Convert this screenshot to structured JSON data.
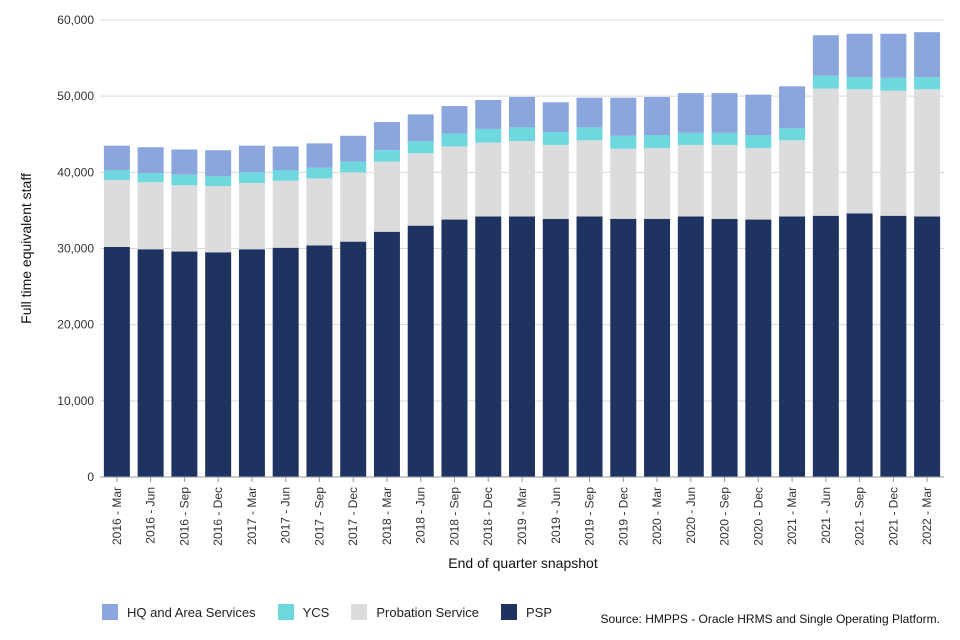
{
  "chart_data": {
    "type": "bar",
    "stacked": true,
    "xlabel": "End of quarter snapshot",
    "ylabel": "Full time equivalent staff",
    "ylim": [
      0,
      60000
    ],
    "yticks": [
      "0",
      "10,000",
      "20,000",
      "30,000",
      "40,000",
      "50,000",
      "60,000"
    ],
    "grid": true,
    "legend_position": "bottom-left",
    "categories": [
      "2016 - Mar",
      "2016 - Jun",
      "2016 - Sep",
      "2016 - Dec",
      "2017 - Mar",
      "2017 - Jun",
      "2017 - Sep",
      "2017 - Dec",
      "2018 - Mar",
      "2018 - Jun",
      "2018 - Sep",
      "2018 - Dec",
      "2019 - Mar",
      "2019 - Jun",
      "2019 - Sep",
      "2019 - Dec",
      "2020 - Mar",
      "2020 - Jun",
      "2020 - Sep",
      "2020 - Dec",
      "2021 - Mar",
      "2021 - Jun",
      "2021 - Sep",
      "2021 - Dec",
      "2022 - Mar"
    ],
    "series": [
      {
        "name": "PSP",
        "color": "#1f3361",
        "values": [
          30200,
          29900,
          29600,
          29500,
          29900,
          30100,
          30400,
          30900,
          32200,
          33000,
          33800,
          34200,
          34200,
          33900,
          34200,
          33900,
          33900,
          34200,
          33900,
          33800,
          34200,
          34300,
          34600,
          34300,
          34200
        ]
      },
      {
        "name": "Probation Service",
        "color": "#dcdcdc",
        "values": [
          8800,
          8800,
          8700,
          8700,
          8700,
          8800,
          8800,
          9100,
          9200,
          9500,
          9600,
          9700,
          9900,
          9700,
          10000,
          9200,
          9300,
          9400,
          9700,
          9400,
          10000,
          16700,
          16300,
          16400,
          16700
        ]
      },
      {
        "name": "YCS",
        "color": "#6fd8df",
        "values": [
          1300,
          1200,
          1400,
          1300,
          1400,
          1400,
          1400,
          1400,
          1500,
          1600,
          1700,
          1800,
          1800,
          1700,
          1700,
          1700,
          1700,
          1600,
          1600,
          1700,
          1600,
          1700,
          1600,
          1700,
          1600
        ]
      },
      {
        "name": "HQ and Area Services",
        "color": "#8ba6dd",
        "values": [
          3200,
          3400,
          3300,
          3400,
          3500,
          3100,
          3200,
          3400,
          3700,
          3500,
          3600,
          3800,
          4000,
          3900,
          3900,
          5000,
          5000,
          5200,
          5200,
          5300,
          5500,
          5300,
          5700,
          5800,
          5900
        ]
      }
    ],
    "legend_order": [
      "HQ and Area Services",
      "YCS",
      "Probation Service",
      "PSP"
    ],
    "grid_color": "#d9d9d9",
    "axis_color": "#999999"
  },
  "source_text": "Source: HMPPS - Oracle HRMS and Single Operating Platform."
}
